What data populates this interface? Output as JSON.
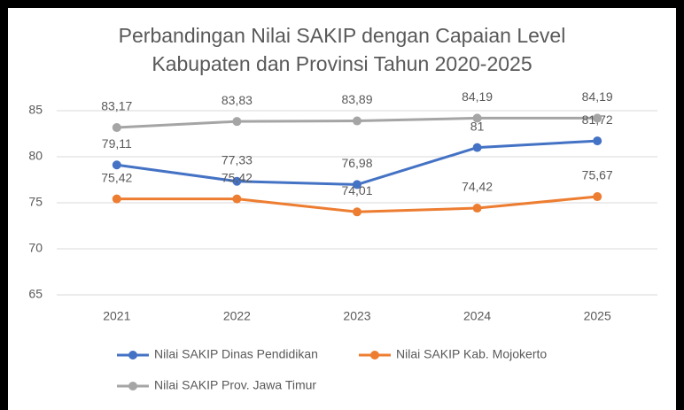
{
  "chart_data": {
    "type": "line",
    "title": "Perbandingan Nilai SAKIP dengan Capaian Level Kabupaten dan Provinsi Tahun 2020-2025",
    "categories": [
      "2021",
      "2022",
      "2023",
      "2024",
      "2025"
    ],
    "series": [
      {
        "name": "Nilai SAKIP Dinas Pendidikan",
        "color": "#4472c4",
        "values": [
          79.11,
          77.33,
          76.98,
          81,
          81.72
        ],
        "value_labels": [
          "79,11",
          "77,33",
          "76,98",
          "81",
          "81,72"
        ]
      },
      {
        "name": "Nilai SAKIP Kab. Mojokerto",
        "color": "#ed7d31",
        "values": [
          75.42,
          75.42,
          74.01,
          74.42,
          75.67
        ],
        "value_labels": [
          "75,42",
          "75,42",
          "74,01",
          "74,42",
          "75,67"
        ]
      },
      {
        "name": "Nilai SAKIP Prov. Jawa Timur",
        "color": "#a5a5a5",
        "values": [
          83.17,
          83.83,
          83.89,
          84.19,
          84.19
        ],
        "value_labels": [
          "83,17",
          "83,83",
          "83,89",
          "84,19",
          "84,19"
        ]
      }
    ],
    "ylim": [
      65,
      85
    ],
    "yticks": [
      65,
      70,
      75,
      80,
      85
    ],
    "grid": true,
    "legend": "bottom"
  }
}
